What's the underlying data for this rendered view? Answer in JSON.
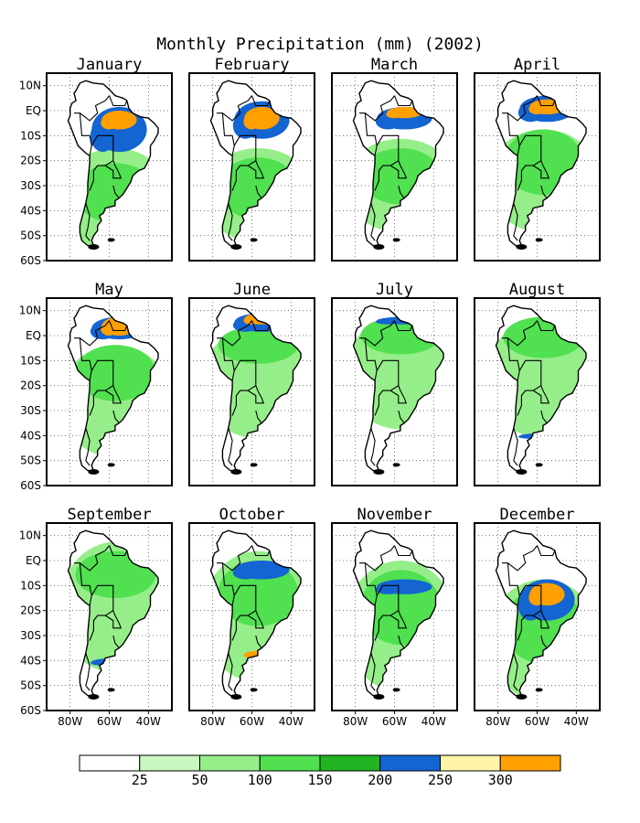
{
  "title": "Monthly Precipitation (mm) (2002)",
  "months": [
    "January",
    "February",
    "March",
    "April",
    "May",
    "June",
    "July",
    "August",
    "September",
    "October",
    "November",
    "December"
  ],
  "lat_labels": [
    "10N",
    "EQ",
    "10S",
    "20S",
    "30S",
    "40S",
    "50S",
    "60S"
  ],
  "lon_labels": [
    "80W",
    "60W",
    "40W"
  ],
  "colorbar": {
    "colors": [
      "#ffffff",
      "#c8f7c0",
      "#96ee8a",
      "#50e050",
      "#22b422",
      "#1464d2",
      "#fff5a8",
      "#ffa000"
    ],
    "labels": [
      "25",
      "50",
      "100",
      "150",
      "200",
      "250",
      "300"
    ]
  },
  "colors": {
    "coast": "#000000",
    "land_base": "#ffffff"
  },
  "monthly_patterns": [
    {
      "month": "January",
      "bands": [
        [
          "#96ee8a",
          [
            40,
            95
          ]
        ],
        [
          "#50e050",
          [
            48,
            80
          ]
        ],
        [
          "#1464d2",
          [
            18,
            42
          ]
        ],
        [
          "#ffa000",
          [
            20,
            30
          ]
        ]
      ]
    },
    {
      "month": "February",
      "bands": [
        [
          "#96ee8a",
          [
            40,
            90
          ]
        ],
        [
          "#50e050",
          [
            45,
            78
          ]
        ],
        [
          "#1464d2",
          [
            15,
            35
          ]
        ],
        [
          "#ffa000",
          [
            18,
            30
          ]
        ]
      ]
    },
    {
      "month": "March",
      "bands": [
        [
          "#96ee8a",
          [
            35,
            85
          ]
        ],
        [
          "#50e050",
          [
            40,
            70
          ]
        ],
        [
          "#1464d2",
          [
            18,
            30
          ]
        ],
        [
          "#ffa000",
          [
            18,
            24
          ]
        ]
      ]
    },
    {
      "month": "April",
      "bands": [
        [
          "#96ee8a",
          [
            30,
            85
          ]
        ],
        [
          "#50e050",
          [
            30,
            65
          ]
        ],
        [
          "#1464d2",
          [
            12,
            26
          ]
        ],
        [
          "#ffa000",
          [
            14,
            22
          ]
        ]
      ]
    },
    {
      "month": "May",
      "bands": [
        [
          "#96ee8a",
          [
            25,
            85
          ]
        ],
        [
          "#50e050",
          [
            25,
            55
          ]
        ],
        [
          "#1464d2",
          [
            10,
            22
          ]
        ],
        [
          "#ffa000",
          [
            10,
            20
          ]
        ]
      ]
    },
    {
      "month": "June",
      "bands": [
        [
          "#96ee8a",
          [
            15,
            75
          ]
        ],
        [
          "#50e050",
          [
            15,
            35
          ]
        ],
        [
          "#1464d2",
          [
            8,
            18
          ]
        ],
        [
          "#ffa000",
          [
            8,
            14
          ]
        ]
      ]
    },
    {
      "month": "July",
      "bands": [
        [
          "#96ee8a",
          [
            10,
            70
          ]
        ],
        [
          "#50e050",
          [
            10,
            30
          ]
        ],
        [
          "#1464d2",
          [
            10,
            14
          ]
        ]
      ]
    },
    {
      "month": "August",
      "bands": [
        [
          "#96ee8a",
          [
            10,
            75
          ]
        ],
        [
          "#50e050",
          [
            10,
            32
          ]
        ],
        [
          "#1464d2",
          [
            72,
            75
          ]
        ]
      ]
    },
    {
      "month": "September",
      "bands": [
        [
          "#96ee8a",
          [
            10,
            80
          ]
        ],
        [
          "#50e050",
          [
            15,
            40
          ]
        ],
        [
          "#1464d2",
          [
            72,
            76
          ]
        ]
      ]
    },
    {
      "month": "October",
      "bands": [
        [
          "#96ee8a",
          [
            15,
            85
          ]
        ],
        [
          "#50e050",
          [
            20,
            55
          ]
        ],
        [
          "#1464d2",
          [
            20,
            30
          ]
        ],
        [
          "#ffa000",
          [
            68,
            72
          ]
        ]
      ]
    },
    {
      "month": "November",
      "bands": [
        [
          "#96ee8a",
          [
            20,
            90
          ]
        ],
        [
          "#50e050",
          [
            25,
            65
          ]
        ],
        [
          "#1464d2",
          [
            30,
            38
          ]
        ]
      ]
    },
    {
      "month": "December",
      "bands": [
        [
          "#96ee8a",
          [
            30,
            95
          ]
        ],
        [
          "#50e050",
          [
            35,
            75
          ]
        ],
        [
          "#1464d2",
          [
            30,
            52
          ]
        ],
        [
          "#ffa000",
          [
            32,
            44
          ]
        ]
      ]
    }
  ]
}
